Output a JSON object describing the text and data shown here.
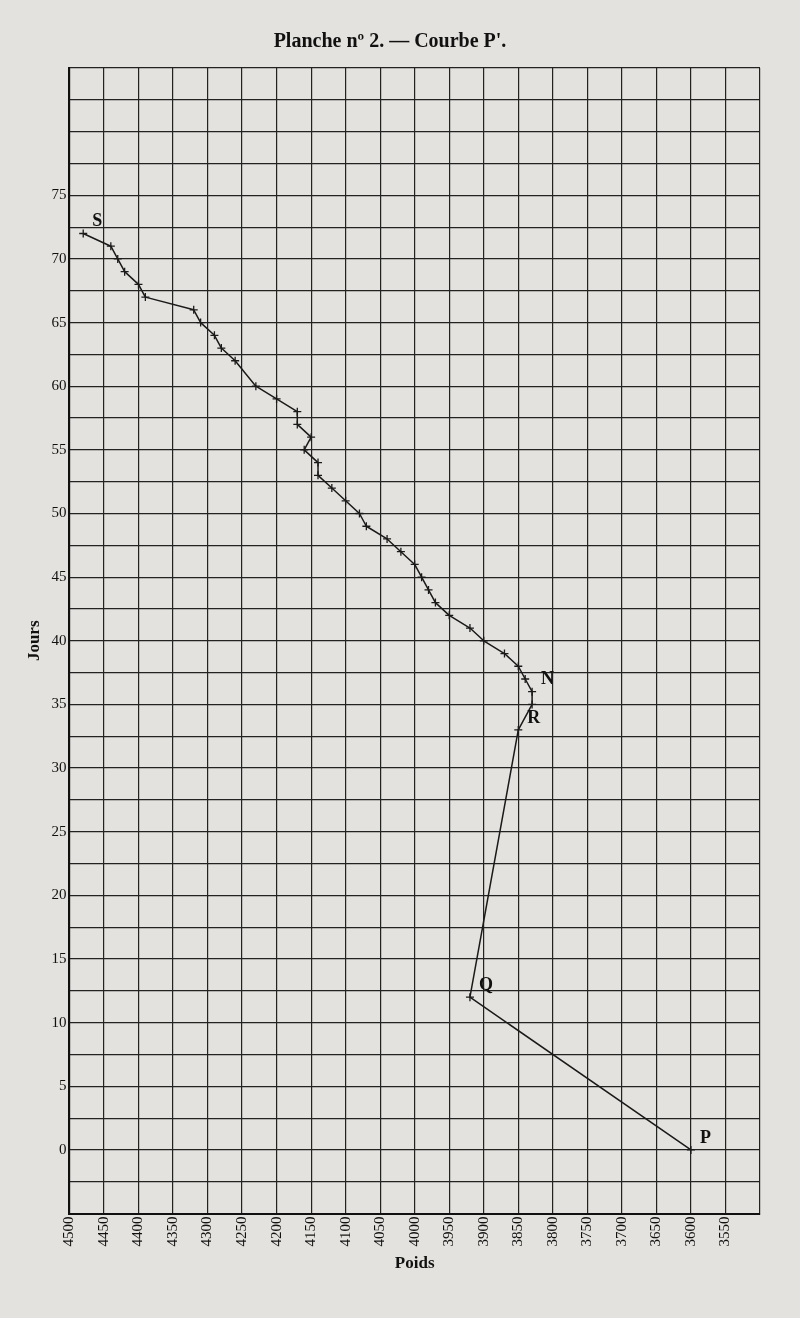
{
  "chart_data": {
    "type": "line",
    "title": "Planche nº 2. — Courbe P'.",
    "xlabel": "Poids",
    "ylabel": "Jours",
    "x": [
      3600,
      3920,
      3850,
      3830,
      3830,
      3840,
      3850,
      3870,
      3900,
      3920,
      3950,
      3970,
      3980,
      3990,
      4000,
      4020,
      4040,
      4070,
      4080,
      4100,
      4120,
      4140,
      4140,
      4160,
      4150,
      4170,
      4170,
      4200,
      4230,
      4260,
      4280,
      4290,
      4310,
      4320,
      4390,
      4400,
      4420,
      4430,
      4440,
      4480
    ],
    "values": [
      0,
      12,
      33,
      35,
      36,
      37,
      38,
      39,
      40,
      41,
      42,
      43,
      44,
      45,
      46,
      47,
      48,
      49,
      50,
      51,
      52,
      53,
      54,
      55,
      56,
      57,
      58,
      59,
      60,
      62,
      63,
      64,
      65,
      66,
      67,
      68,
      69,
      70,
      71,
      72
    ],
    "color": "#1a1a1a",
    "marker": "cross",
    "line_style": "solid",
    "grid": true,
    "legend": false,
    "xlim": [
      4500,
      3500
    ],
    "xticks": [
      4500,
      4450,
      4400,
      4350,
      4300,
      4250,
      4200,
      4150,
      4100,
      4050,
      4000,
      3950,
      3900,
      3850,
      3800,
      3750,
      3700,
      3650,
      3600,
      3550,
      {
        "value": 3500,
        "label": null
      }
    ],
    "ylim": [
      -5,
      85
    ],
    "yticks": [
      {
        "value": -5,
        "label": null
      },
      {
        "value": -2.5,
        "label": null
      },
      0,
      {
        "value": 2.5,
        "label": null
      },
      5,
      {
        "value": 7.5,
        "label": null
      },
      10,
      {
        "value": 12.5,
        "label": null
      },
      15,
      {
        "value": 17.5,
        "label": null
      },
      20,
      {
        "value": 22.5,
        "label": null
      },
      25,
      {
        "value": 27.5,
        "label": null
      },
      30,
      {
        "value": 32.5,
        "label": null
      },
      35,
      {
        "value": 37.5,
        "label": null
      },
      40,
      {
        "value": 42.5,
        "label": null
      },
      45,
      {
        "value": 47.5,
        "label": null
      },
      50,
      {
        "value": 52.5,
        "label": null
      },
      55,
      {
        "value": 57.5,
        "label": null
      },
      60,
      {
        "value": 62.5,
        "label": null
      },
      65,
      {
        "value": 67.5,
        "label": null
      },
      70,
      {
        "value": 72.5,
        "label": null
      },
      75,
      {
        "value": 77.5,
        "label": null
      },
      {
        "value": 80,
        "label": null
      },
      {
        "value": 82.5,
        "label": null
      },
      {
        "value": 85,
        "label": null
      }
    ],
    "annotations": [
      {
        "text": "P",
        "x": 3600,
        "y": 0
      },
      {
        "text": "Q",
        "x": 3920,
        "y": 12
      },
      {
        "text": "R",
        "x": 3850,
        "y": 33
      },
      {
        "text": "N",
        "x": 3830,
        "y": 36
      },
      {
        "text": "S",
        "x": 4480,
        "y": 72
      }
    ]
  }
}
